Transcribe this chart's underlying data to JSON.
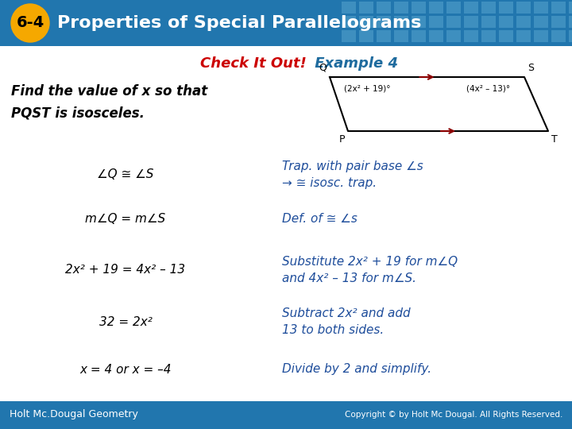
{
  "title_badge": "6-4",
  "title_text": "Properties of Special Parallelograms",
  "subtitle_check": "Check It Out!",
  "subtitle_example": " Example 4",
  "header_bg": "#2176AE",
  "badge_bg": "#F5A800",
  "subtitle_check_color": "#CC0000",
  "subtitle_example_color": "#1E6B9E",
  "body_bg": "#FFFFFF",
  "footer_bg": "#2176AE",
  "footer_left": "Holt Mc.Dougal Geometry",
  "footer_right": "Copyright © by Holt Mc Dougal. All Rights Reserved.",
  "problem_text_line1": "Find the value of x so that",
  "problem_text_line2": "PQST is isosceles.",
  "steps_left": [
    "∠Q ≅ ∠S",
    "m∠Q = m∠S",
    "2x² + 19 = 4x² – 13",
    "32 = 2x²",
    "x = 4 or x = –4"
  ],
  "steps_right": [
    "Trap. with pair base ∠s\n→ ≅ isosc. trap.",
    "Def. of ≅ ∠s",
    "Substitute 2x² + 19 for m∠Q\nand 4x² – 13 for m∠S.",
    "Subtract 2x² and add\n13 to both sides.",
    "Divide by 2 and simplify."
  ],
  "step_color": "#1E4D9B",
  "angle_label_left": "(2x² + 19)°",
  "angle_label_right": "(4x² – 13)°",
  "trap_color": "#8B0000"
}
